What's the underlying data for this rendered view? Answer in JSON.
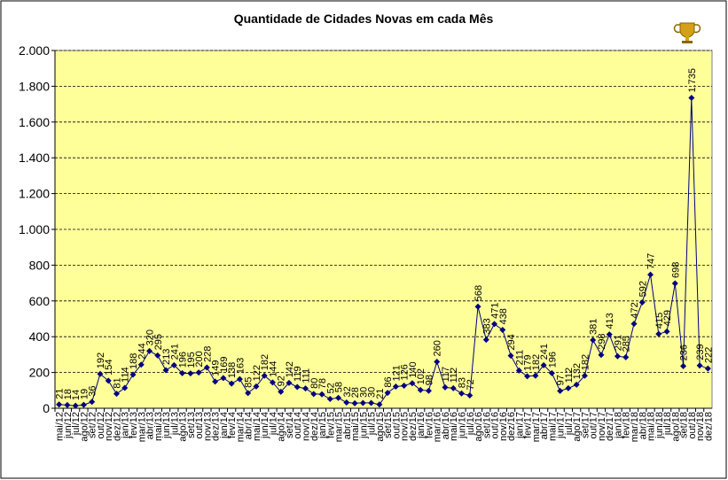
{
  "chart_data": {
    "type": "line",
    "title": "Quantidade de Cidades Novas em cada Mês",
    "categories": [
      "mai/12",
      "jun/12",
      "jul/12",
      "ago/12",
      "set/12",
      "out/12",
      "nov/12",
      "dez/12",
      "jan/13",
      "fev/13",
      "mar/13",
      "abr/13",
      "mai/13",
      "jun/13",
      "jul/13",
      "ago/13",
      "set/13",
      "out/13",
      "nov/13",
      "dez/13",
      "jan/14",
      "fev/14",
      "mar/14",
      "abr/14",
      "mai/14",
      "jun/14",
      "jul/14",
      "ago/14",
      "set/14",
      "out/14",
      "nov/14",
      "dez/14",
      "jan/15",
      "fev/15",
      "mar/15",
      "abr/15",
      "mai/15",
      "jun/15",
      "jul/15",
      "ago/15",
      "set/15",
      "out/15",
      "nov/15",
      "dez/15",
      "jan/16",
      "fev/16",
      "mar/16",
      "abr/16",
      "mai/16",
      "jun/16",
      "jul/16",
      "ago/16",
      "set/16",
      "out/16",
      "nov/16",
      "dez/16",
      "jan/17",
      "fev/17",
      "mar/17",
      "abr/17",
      "mai/17",
      "jun/17",
      "jul/17",
      "ago/17",
      "set/17",
      "out/17",
      "nov/17",
      "dez/17",
      "jan/18",
      "fev/18",
      "mar/18",
      "abr/18",
      "mai/18",
      "jun/18",
      "jul/18",
      "ago/18",
      "set/18",
      "out/18",
      "nov/18",
      "dez/18"
    ],
    "values": [
      21,
      18,
      14,
      19,
      36,
      192,
      154,
      81,
      114,
      188,
      244,
      320,
      295,
      213,
      241,
      196,
      195,
      200,
      228,
      149,
      169,
      138,
      163,
      85,
      122,
      182,
      144,
      92,
      142,
      119,
      111,
      80,
      78,
      52,
      58,
      32,
      28,
      30,
      30,
      21,
      86,
      121,
      126,
      140,
      102,
      98,
      260,
      117,
      112,
      83,
      72,
      568,
      383,
      471,
      438,
      294,
      211,
      179,
      182,
      241,
      196,
      97,
      112,
      132,
      182,
      381,
      298,
      413,
      291,
      285,
      472,
      592,
      747,
      415,
      429,
      698,
      236,
      1735,
      239,
      222
    ],
    "value_labels": [
      "21",
      "18",
      "14",
      "19",
      "36",
      "192",
      "154",
      "81",
      "114",
      "188",
      "244",
      "320",
      "295",
      "213",
      "241",
      "196",
      "195",
      "200",
      "228",
      "149",
      "169",
      "138",
      "163",
      "85",
      "122",
      "182",
      "144",
      "92",
      "142",
      "119",
      "111",
      "80",
      "78",
      "52",
      "58",
      "32",
      "28",
      "30",
      "30",
      "21",
      "86",
      "121",
      "126",
      "140",
      "102",
      "98",
      "260",
      "117",
      "112",
      "83",
      "72",
      "568",
      "383",
      "471",
      "438",
      "294",
      "211",
      "179",
      "182",
      "241",
      "196",
      "97",
      "112",
      "132",
      "182",
      "381",
      "298",
      "413",
      "291",
      "285",
      "472",
      "592",
      "747",
      "415",
      "429",
      "698",
      "236",
      "1.735",
      "239",
      "222"
    ],
    "color": "#000080",
    "ylim": [
      0,
      2000
    ],
    "yticks": [
      0,
      200,
      400,
      600,
      800,
      {
        "value": 1000,
        "label": "1.000"
      },
      {
        "value": 1200,
        "label": "1.200"
      },
      {
        "value": 1400,
        "label": "1.400"
      },
      {
        "value": 1600,
        "label": "1.600"
      },
      {
        "value": 1800,
        "label": "1.800"
      },
      {
        "value": 2000,
        "label": "2.000"
      }
    ],
    "grid": true
  }
}
